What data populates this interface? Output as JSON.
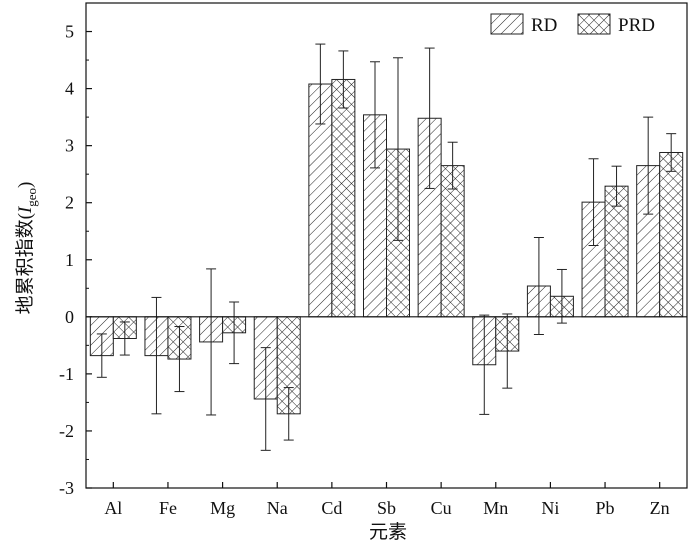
{
  "chart_data": {
    "type": "bar",
    "xlabel": "元素",
    "ylabel_main": "地累积指数(",
    "ylabel_I": "I",
    "ylabel_sub": "geo",
    "ylabel_close": ")",
    "categories": [
      "Al",
      "Fe",
      "Mg",
      "Na",
      "Cd",
      "Sb",
      "Cu",
      "Mn",
      "Ni",
      "Pb",
      "Zn"
    ],
    "ylim": [
      -3,
      5.5
    ],
    "yticks": [
      -3,
      -2,
      -1,
      0,
      1,
      2,
      3,
      4,
      5
    ],
    "legend_position": "top-right",
    "series": [
      {
        "name": "RD",
        "pattern": "diagonal-hatch",
        "values": [
          -0.68,
          -0.68,
          -0.44,
          -1.44,
          4.08,
          3.54,
          3.48,
          -0.84,
          0.54,
          2.01,
          2.65
        ],
        "errors": [
          0.38,
          1.02,
          1.28,
          0.9,
          0.7,
          0.93,
          1.23,
          0.87,
          0.85,
          0.76,
          0.85
        ]
      },
      {
        "name": "PRD",
        "pattern": "cross-hatch",
        "values": [
          -0.38,
          -0.74,
          -0.28,
          -1.7,
          4.16,
          2.94,
          2.65,
          -0.6,
          0.36,
          2.29,
          2.88
        ],
        "errors": [
          0.29,
          0.57,
          0.54,
          0.46,
          0.5,
          1.6,
          0.41,
          0.65,
          0.47,
          0.35,
          0.33
        ]
      }
    ]
  }
}
